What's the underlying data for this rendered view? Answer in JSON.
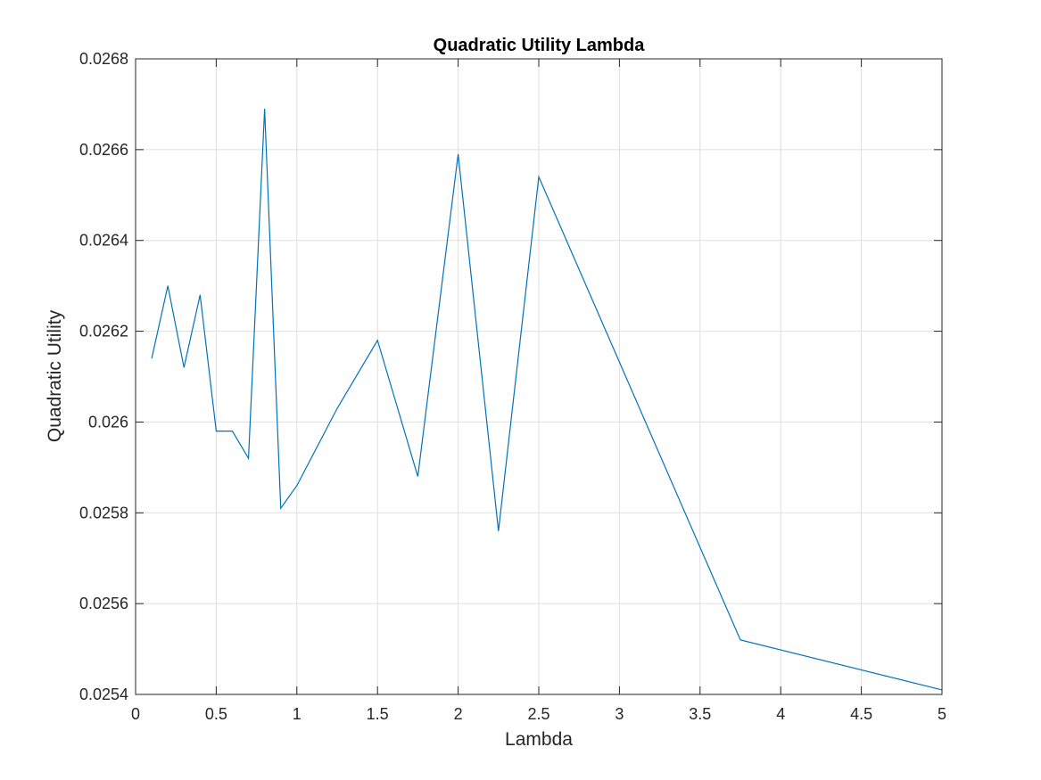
{
  "chart_data": {
    "type": "line",
    "title": "Quadratic Utility Lambda",
    "xlabel": "Lambda",
    "ylabel": "Quadratic Utility",
    "xlim": [
      0,
      5
    ],
    "ylim": [
      0.0254,
      0.0268
    ],
    "x_ticks": [
      0,
      0.5,
      1,
      1.5,
      2,
      2.5,
      3,
      3.5,
      4,
      4.5,
      5
    ],
    "x_tick_labels": [
      "0",
      "0.5",
      "1",
      "1.5",
      "2",
      "2.5",
      "3",
      "3.5",
      "4",
      "4.5",
      "5"
    ],
    "y_ticks": [
      0.0254,
      0.0256,
      0.0258,
      0.026,
      0.0262,
      0.0264,
      0.0266,
      0.0268
    ],
    "y_tick_labels": [
      "0.0254",
      "0.0256",
      "0.0258",
      "0.026",
      "0.0262",
      "0.0264",
      "0.0266",
      "0.0268"
    ],
    "grid": true,
    "line_color": "#0072BD",
    "series": [
      {
        "x": [
          0.1,
          0.2,
          0.3,
          0.4,
          0.5,
          0.6,
          0.7,
          0.8,
          0.9,
          1.0,
          1.25,
          1.5,
          1.75,
          2.0,
          2.25,
          2.5,
          3.75,
          5.0
        ],
        "y": [
          0.02614,
          0.0263,
          0.02612,
          0.02628,
          0.02598,
          0.02598,
          0.02592,
          0.02669,
          0.02581,
          0.02586,
          0.02603,
          0.02618,
          0.02588,
          0.02659,
          0.02576,
          0.02654,
          0.02552,
          0.02541
        ]
      }
    ]
  }
}
